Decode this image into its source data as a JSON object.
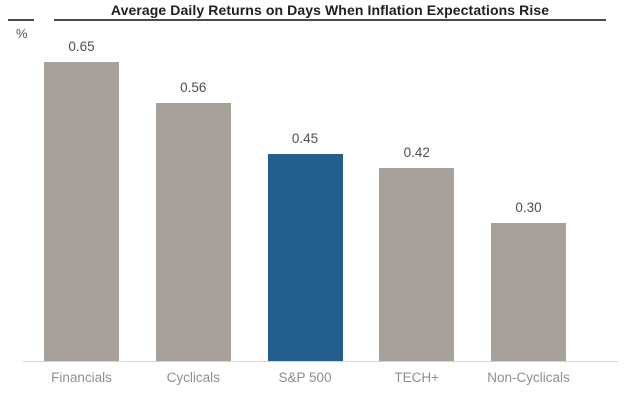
{
  "chart": {
    "title": "Average Daily Returns on Days When Inflation Expectations Rise",
    "y_axis_unit": "%"
  },
  "chart_data": {
    "type": "bar",
    "title": "Average Daily Returns on Days When Inflation Expectations Rise",
    "xlabel": "",
    "ylabel": "%",
    "categories": [
      "Financials",
      "Cyclicals",
      "S&P 500",
      "TECH+",
      "Non-Cyclicals"
    ],
    "values": [
      0.65,
      0.56,
      0.45,
      0.42,
      0.3
    ],
    "value_labels": [
      "0.65",
      "0.56",
      "0.45",
      "0.42",
      "0.30"
    ],
    "highlight_index": 2,
    "highlight_category": "S&P 500",
    "colors": {
      "bar_default": "#a8a19a",
      "bar_highlight": "#235e8c",
      "title_text": "#1f1f1f",
      "value_text": "#4f4f4f",
      "category_text": "#8f8f8f",
      "baseline": "#d6d3d0"
    },
    "ylim": [
      0,
      0.7
    ],
    "grid": false,
    "legend": false
  }
}
